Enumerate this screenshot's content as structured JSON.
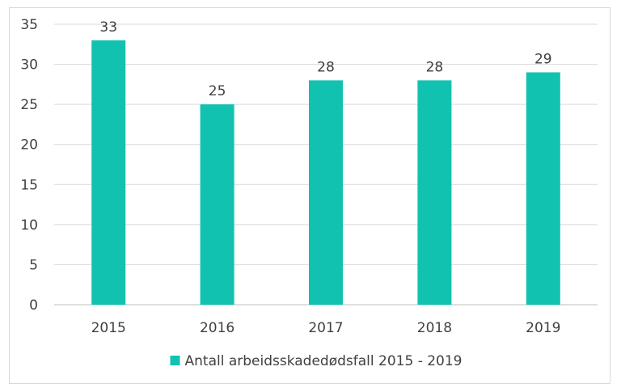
{
  "chart_data": {
    "type": "bar",
    "categories": [
      "2015",
      "2016",
      "2017",
      "2018",
      "2019"
    ],
    "series": [
      {
        "name": "Antall arbeidsskadedødsfall 2015 - 2019",
        "values": [
          33,
          25,
          28,
          28,
          29
        ],
        "color": "#12c2b1"
      }
    ],
    "yticks": [
      "0",
      "5",
      "10",
      "15",
      "20",
      "25",
      "30",
      "35"
    ],
    "ylim": [
      0,
      35
    ],
    "grid": true,
    "legend": "bottom",
    "data_labels": true
  }
}
